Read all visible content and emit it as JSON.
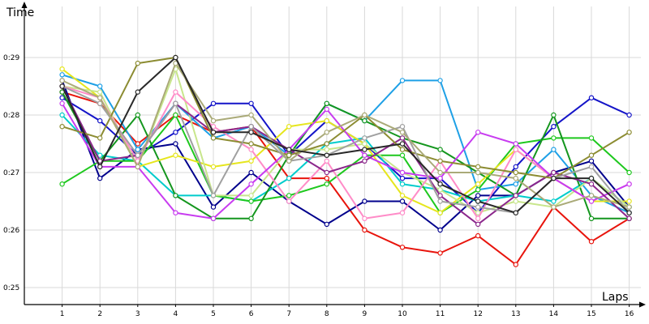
{
  "chart_data": {
    "type": "line",
    "xlabel": "Laps",
    "ylabel": "Time",
    "x": [
      1,
      2,
      3,
      4,
      5,
      6,
      7,
      8,
      9,
      10,
      11,
      12,
      13,
      14,
      15,
      16
    ],
    "x_ticks": [
      "1",
      "2",
      "3",
      "4",
      "5",
      "6",
      "7",
      "8",
      "9",
      "10",
      "11",
      "12",
      "13",
      "14",
      "15",
      "16"
    ],
    "xlim": [
      0,
      16.4
    ],
    "ylim_seconds": [
      24.8,
      30.2
    ],
    "y_ticks": [
      {
        "value": 25,
        "label": "0:25"
      },
      {
        "value": 26,
        "label": "0:26"
      },
      {
        "value": 27,
        "label": "0:27"
      },
      {
        "value": 28,
        "label": "0:28"
      },
      {
        "value": 29,
        "label": "0:29"
      }
    ],
    "grid": true,
    "legend": "none",
    "series": [
      {
        "color": "#e8140c",
        "values": [
          28.4,
          28.2,
          27.5,
          28.0,
          27.7,
          27.8,
          26.9,
          26.9,
          26.0,
          25.7,
          25.6,
          25.9,
          25.4,
          26.4,
          25.8,
          26.2
        ]
      },
      {
        "color": "#1414c8",
        "values": [
          28.3,
          27.9,
          27.3,
          27.7,
          28.2,
          28.2,
          27.3,
          27.9,
          27.5,
          26.9,
          26.9,
          26.3,
          27.1,
          27.8,
          28.3,
          28.0
        ]
      },
      {
        "color": "#00008c",
        "values": [
          28.6,
          26.9,
          27.4,
          27.5,
          26.4,
          27.0,
          26.5,
          26.1,
          26.5,
          26.5,
          26.0,
          26.6,
          26.6,
          27.0,
          27.2,
          26.4
        ]
      },
      {
        "color": "#1ea0e6",
        "values": [
          28.7,
          28.5,
          27.4,
          28.2,
          27.6,
          27.8,
          27.3,
          28.2,
          27.9,
          28.6,
          28.6,
          26.7,
          26.8,
          27.4,
          26.6,
          26.3
        ]
      },
      {
        "color": "#00cccc",
        "values": [
          28.0,
          27.3,
          27.2,
          26.6,
          26.6,
          26.5,
          26.9,
          27.5,
          27.6,
          26.8,
          26.7,
          26.5,
          26.6,
          26.5,
          26.9,
          26.4
        ]
      },
      {
        "color": "#1ec81e",
        "values": [
          26.8,
          27.2,
          27.2,
          28.0,
          26.6,
          26.5,
          26.6,
          26.8,
          27.3,
          27.3,
          26.3,
          26.7,
          27.5,
          27.6,
          27.6,
          27.0
        ]
      },
      {
        "color": "#14961e",
        "values": [
          28.4,
          27.2,
          28.0,
          26.6,
          26.2,
          26.2,
          27.3,
          28.2,
          27.9,
          27.6,
          27.4,
          27.0,
          26.6,
          28.0,
          26.2,
          26.2
        ]
      },
      {
        "color": "#e6e61e",
        "values": [
          28.8,
          28.3,
          27.1,
          27.3,
          27.1,
          27.2,
          27.8,
          27.9,
          27.5,
          26.6,
          26.3,
          26.8,
          27.4,
          26.9,
          26.5,
          26.5
        ]
      },
      {
        "color": "#c8e68c",
        "values": [
          28.5,
          28.4,
          27.1,
          28.8,
          26.6,
          26.6,
          27.4,
          27.4,
          27.5,
          27.0,
          26.7,
          26.3,
          26.5,
          26.4,
          26.9,
          26.4
        ]
      },
      {
        "color": "#ff8cc8",
        "values": [
          28.5,
          28.3,
          27.2,
          28.4,
          27.8,
          27.4,
          26.5,
          27.2,
          26.2,
          26.3,
          27.2,
          26.2,
          27.4,
          26.9,
          26.5,
          26.8
        ]
      },
      {
        "color": "#c83cf0",
        "values": [
          28.2,
          27.1,
          27.1,
          26.3,
          26.2,
          26.8,
          27.4,
          28.1,
          27.3,
          27.0,
          26.9,
          27.7,
          27.5,
          26.9,
          26.5,
          26.8
        ]
      },
      {
        "color": "#8c288c",
        "values": [
          28.5,
          27.2,
          27.3,
          28.2,
          27.7,
          27.8,
          27.4,
          27.0,
          27.2,
          27.6,
          26.6,
          26.1,
          26.6,
          27.0,
          26.8,
          26.2
        ]
      },
      {
        "color": "#8c8c32",
        "values": [
          27.8,
          27.6,
          28.9,
          29.0,
          27.6,
          27.5,
          27.3,
          27.5,
          28.0,
          27.4,
          27.2,
          27.1,
          27.0,
          26.9,
          27.3,
          27.7
        ]
      },
      {
        "color": "#a0a0a0",
        "values": [
          28.5,
          28.2,
          27.3,
          28.2,
          26.6,
          27.8,
          27.2,
          27.3,
          27.6,
          27.8,
          26.5,
          26.4,
          26.3,
          26.9,
          27.1,
          26.3
        ]
      },
      {
        "color": "#aaaa78",
        "values": [
          28.6,
          28.3,
          27.1,
          28.9,
          27.9,
          28.0,
          27.2,
          27.7,
          28.0,
          27.7,
          27.0,
          27.0,
          26.9,
          26.4,
          26.6,
          26.4
        ]
      },
      {
        "color": "#282828",
        "values": [
          28.5,
          27.1,
          28.4,
          29.0,
          27.7,
          27.7,
          27.4,
          27.3,
          27.4,
          27.5,
          26.8,
          26.5,
          26.3,
          26.9,
          26.9,
          26.3
        ]
      }
    ]
  }
}
